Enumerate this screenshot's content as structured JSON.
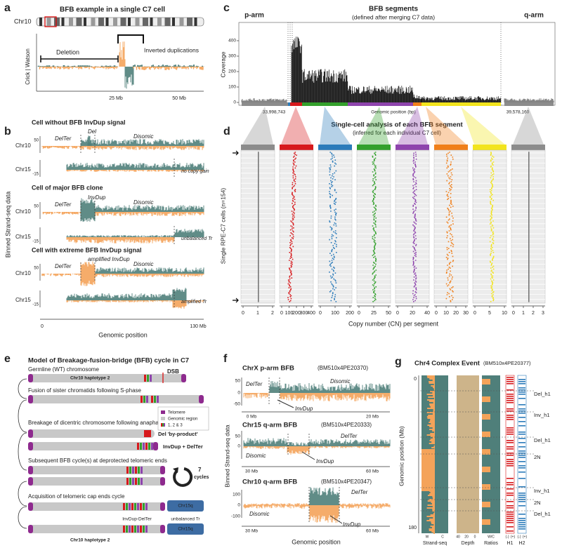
{
  "a": {
    "letter": "a",
    "title": "BFB example in a single C7 cell",
    "chrom": "Chr10",
    "ylabel": "Crick | Watson",
    "deletion": "Deletion",
    "invdup": "Inverted duplications",
    "xticks": [
      "25 Mb",
      "50 Mb"
    ]
  },
  "b": {
    "letter": "b",
    "ylabel": "Binned Strand-seq data",
    "xlabel": "Genomic position",
    "xticks": [
      "0",
      "130 Mb"
    ],
    "cells": [
      {
        "title": "Cell without BFB InvDup signal",
        "chr10": "Chr10",
        "chr15": "Chr15",
        "tick10": "50",
        "tick15": "-15",
        "labels": [
          "DelTer",
          "Del",
          "Disomic",
          "no copy gain"
        ]
      },
      {
        "title": "Cell of major BFB clone",
        "chr10": "Chr10",
        "chr15": "Chr15",
        "tick10": "50",
        "tick15": "-15",
        "labels": [
          "DelTer",
          "InvDup",
          "Disomic",
          "unbalanced Tr"
        ]
      },
      {
        "title": "Cell with extreme BFB InvDup signal",
        "chr10": "Chr10",
        "chr15": "Chr15",
        "tick10": "50",
        "tick15": "-15",
        "labels": [
          "DelTer",
          "amplified InvDup",
          "Disomic",
          "amplified Tr"
        ]
      }
    ]
  },
  "c": {
    "letter": "c",
    "title": "BFB segments",
    "subtitle": "(defined after merging C7 data)",
    "parm": "p-arm",
    "qarm": "q-arm",
    "ylabel": "Coverage",
    "yticks": [
      "0",
      "100",
      "200",
      "300",
      "400"
    ],
    "xstart": "33,998,743",
    "xmid": "Genomic position (bp)",
    "xend": "39,578,160"
  },
  "d": {
    "letter": "d",
    "title": "Single-cell analysis of each BFB segment",
    "subtitle": "(inferred for each individual C7 cell)",
    "ylabel": "Single RPE-C7 cells (n=154)",
    "xlabel": "Copy number (CN) per segment",
    "columns": [
      {
        "color": "#8c8c8c",
        "ticks": [
          "0",
          "1",
          "2"
        ]
      },
      {
        "color": "#d7191c",
        "ticks": [
          "0",
          "100",
          "200",
          "300",
          "400"
        ]
      },
      {
        "color": "#2b7bba",
        "ticks": [
          "0",
          "100",
          "200"
        ]
      },
      {
        "color": "#33a02c",
        "ticks": [
          "0",
          "25",
          "50"
        ]
      },
      {
        "color": "#8e44ad",
        "ticks": [
          "0",
          "20",
          "40"
        ]
      },
      {
        "color": "#f07f1a",
        "ticks": [
          "0",
          "10",
          "20",
          "30"
        ]
      },
      {
        "color": "#f2e41d",
        "ticks": [
          "0",
          "5",
          "10"
        ]
      },
      {
        "color": "#8c8c8c",
        "ticks": [
          "0",
          "1",
          "2",
          "3"
        ]
      }
    ]
  },
  "e": {
    "letter": "e",
    "title": "Model of Breakage-fusion-bridge (BFB) cycle in C7",
    "steps": [
      "Germline (WT) chromosome",
      "Fusion of sister chromatids following S-phase",
      "Breakage of dicentric chromosome following anaphase",
      "Subsequent BFB cycle(s) at deprotected telomeric ends",
      "Acquisition of telomeric cap ends cycle"
    ],
    "haplotype": "Chr10 haplotype 2",
    "dsb": "DSB",
    "legend": [
      "Telomere",
      "Genomic region",
      "1, 2 & 3"
    ],
    "del_byproduct": "Del 'by-product'",
    "invdup_delter": "InvDup + DelTer",
    "cycles_n": "7",
    "cycles": "cycles",
    "final": {
      "haplotype": "Chr10 haplotype 2",
      "invdup": "InvDup-DelTer",
      "tr": "unbalanced Tr",
      "chr15a": "Chr15q",
      "chr15b": "Chr15q"
    }
  },
  "f": {
    "letter": "f",
    "ylabel": "Binned Strand-seq data",
    "xlabel": "Genomic position",
    "tracks": [
      {
        "title": "ChrX p-arm BFB",
        "id": "(BM510x4PE20370)",
        "labels": [
          "DelTer",
          "Disomic",
          "InvDup"
        ],
        "yticks": [
          "50",
          "0",
          "-50"
        ],
        "xticks": [
          "0 Mb",
          "20 Mb"
        ]
      },
      {
        "title": "Chr15 q-arm BFB",
        "id": "(BM510x4PE20333)",
        "labels": [
          "Disomic",
          "DelTer",
          "InvDup"
        ],
        "yticks": [
          "50",
          "0"
        ],
        "xticks": [
          "30 Mb",
          "60 Mb"
        ]
      },
      {
        "title": "Chr10 q-arm BFB",
        "id": "(BM510x4PE20347)",
        "labels": [
          "Disomic",
          "DelTer",
          "InvDup"
        ],
        "yticks": [
          "100",
          "0",
          "-100"
        ],
        "xticks": [
          "30 Mb",
          "60 Mb"
        ]
      }
    ]
  },
  "g": {
    "letter": "g",
    "title": "Chr4 Complex Event",
    "id": "(BM510x4PE20377)",
    "ylabel": "Genomic position (Mb)",
    "yticks": [
      "0",
      "180"
    ],
    "events": [
      "Del_h1",
      "Inv_h1",
      "Del_h1",
      "2N",
      "Inv_h1",
      "2N",
      "Del_h1"
    ],
    "tracks": [
      "Strand-seq",
      "Depth",
      "Ratios",
      "H1",
      "H2"
    ],
    "sublabels": [
      "W",
      "C",
      "40",
      "20",
      "0",
      "W/C",
      "(-)",
      "(+)",
      "(-)",
      "(+)"
    ]
  }
}
